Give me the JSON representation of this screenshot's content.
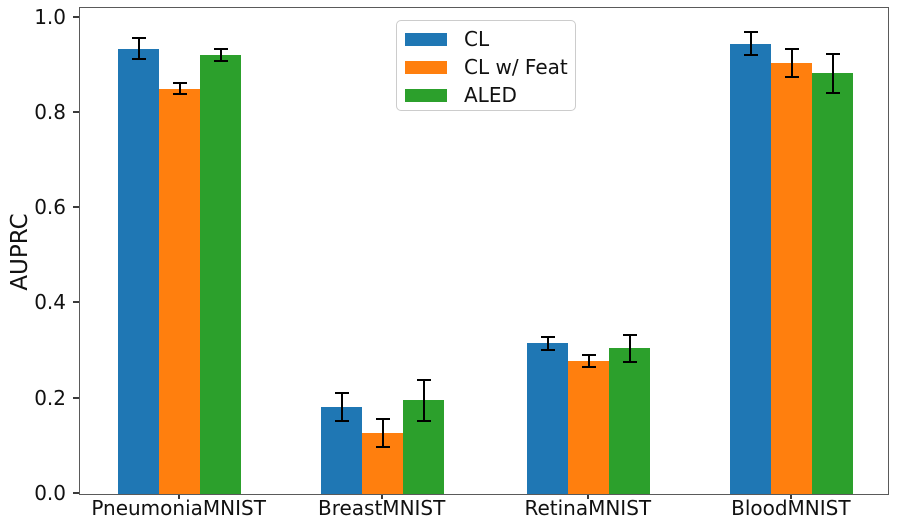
{
  "chart_data": {
    "type": "bar",
    "title": "",
    "xlabel": "",
    "ylabel": "AUPRC",
    "ylim": [
      0,
      1.02
    ],
    "yticks": [
      0.0,
      0.2,
      0.4,
      0.6,
      0.8,
      1.0
    ],
    "ytick_labels": [
      "0.0",
      "0.2",
      "0.4",
      "0.6",
      "0.8",
      "1.0"
    ],
    "grid": false,
    "categories": [
      "PneumoniaMNIST",
      "BreastMNIST",
      "RetinaMNIST",
      "BloodMNIST"
    ],
    "series": [
      {
        "name": "CL",
        "color": "#1f77b4",
        "values": [
          0.935,
          0.183,
          0.316,
          0.945
        ],
        "errors": [
          0.023,
          0.029,
          0.013,
          0.024
        ]
      },
      {
        "name": "CL w/ Feat",
        "color": "#ff7f0e",
        "values": [
          0.851,
          0.128,
          0.279,
          0.904
        ],
        "errors": [
          0.011,
          0.03,
          0.013,
          0.029
        ]
      },
      {
        "name": "ALED",
        "color": "#2ca02c",
        "values": [
          0.921,
          0.197,
          0.306,
          0.883
        ],
        "errors": [
          0.012,
          0.043,
          0.028,
          0.041
        ]
      }
    ],
    "legend": {
      "position": "upper center",
      "entries": [
        "CL",
        "CL w/ Feat",
        "ALED"
      ]
    },
    "error_bar_color": "#000000"
  }
}
